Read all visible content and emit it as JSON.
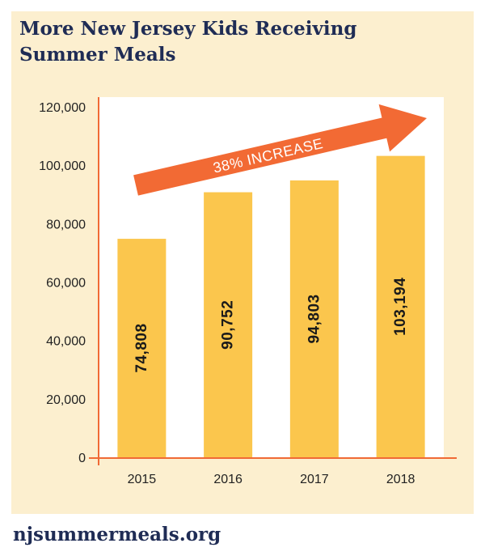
{
  "title_line1": "More New Jersey Kids Receiving",
  "title_line2": "Summer Meals",
  "footer": "njsummermeals.org",
  "colors": {
    "panel": "#fcefcf",
    "plot_bg": "#ffffff",
    "bar": "#fbc64d",
    "axis": "#f06a35",
    "arrow": "#f26a34",
    "title": "#1f2c55"
  },
  "chart_data": {
    "type": "bar",
    "categories": [
      "2015",
      "2016",
      "2017",
      "2018"
    ],
    "values": [
      74808,
      90752,
      94803,
      103194
    ],
    "value_labels": [
      "74,808",
      "90,752",
      "94,803",
      "103,194"
    ],
    "title": "More New Jersey Kids Receiving Summer Meals",
    "xlabel": "",
    "ylabel": "",
    "ylim": [
      0,
      120000
    ],
    "yticks": [
      0,
      20000,
      40000,
      60000,
      80000,
      100000,
      120000
    ],
    "ytick_labels": [
      "0",
      "20,000",
      "40,000",
      "60,000",
      "80,000",
      "100,000",
      "120,000"
    ],
    "grid": false,
    "legend": "none",
    "annotations": [
      {
        "text": "38% INCREASE",
        "type": "arrow",
        "direction": "up-right"
      }
    ]
  }
}
